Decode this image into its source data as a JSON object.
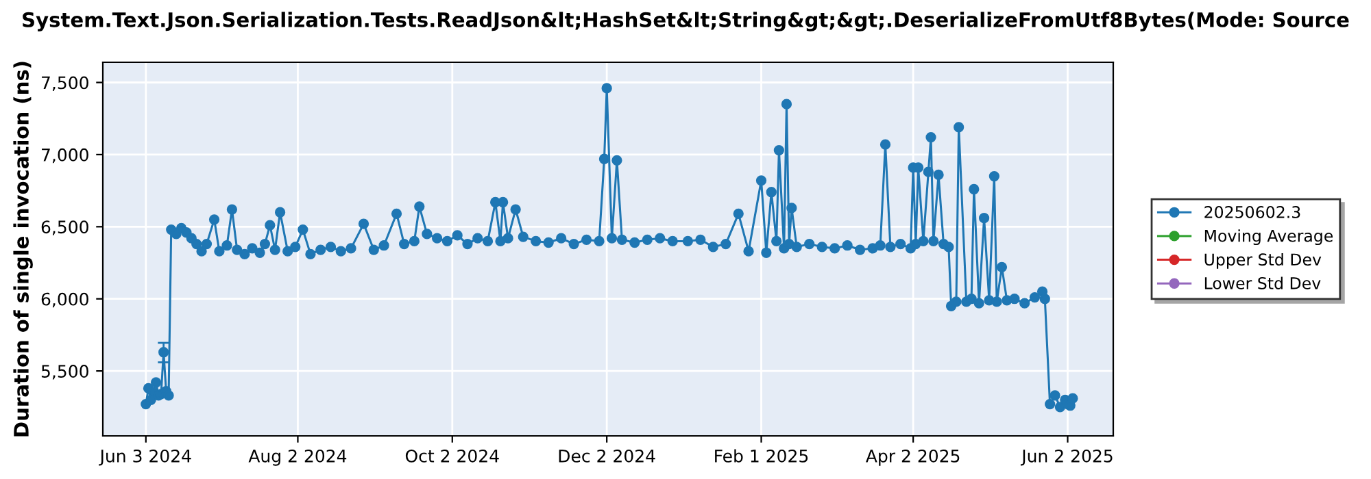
{
  "chart_data": {
    "type": "line",
    "title": "System.Text.Json.Serialization.Tests.ReadJson&lt;HashSet&lt;String&gt;&gt;.DeserializeFromUtf8Bytes(Mode: Source",
    "ylabel": "Duration of single invocation (ns)",
    "xlim": [
      "2024-05-17",
      "2025-06-20"
    ],
    "xticks": [
      {
        "value": "2024-06-03",
        "label": "Jun 3 2024"
      },
      {
        "value": "2024-08-02",
        "label": "Aug 2 2024"
      },
      {
        "value": "2024-10-02",
        "label": "Oct 2 2024"
      },
      {
        "value": "2024-12-02",
        "label": "Dec 2 2024"
      },
      {
        "value": "2025-02-01",
        "label": "Feb 1 2025"
      },
      {
        "value": "2025-04-02",
        "label": "Apr 2 2025"
      },
      {
        "value": "2025-06-02",
        "label": "Jun 2 2025"
      }
    ],
    "ylim": [
      5050,
      7640
    ],
    "yticks": [
      {
        "value": 5500,
        "label": "5,500"
      },
      {
        "value": 6000,
        "label": "6,000"
      },
      {
        "value": 6500,
        "label": "6,500"
      },
      {
        "value": 7000,
        "label": "7,000"
      },
      {
        "value": 7500,
        "label": "7,500"
      }
    ],
    "grid": true,
    "legend": "right",
    "marker": "circle",
    "line_style": "solid",
    "series": [
      {
        "name": "20250602.3",
        "color": "#1f77b4",
        "x": [
          "2024-06-03",
          "2024-06-04",
          "2024-06-05",
          "2024-06-06",
          "2024-06-07",
          "2024-06-08",
          "2024-06-09",
          "2024-06-10",
          "2024-06-11",
          "2024-06-12",
          "2024-06-13",
          "2024-06-15",
          "2024-06-17",
          "2024-06-19",
          "2024-06-21",
          "2024-06-23",
          "2024-06-25",
          "2024-06-27",
          "2024-06-30",
          "2024-07-02",
          "2024-07-05",
          "2024-07-07",
          "2024-07-09",
          "2024-07-12",
          "2024-07-15",
          "2024-07-18",
          "2024-07-20",
          "2024-07-22",
          "2024-07-24",
          "2024-07-26",
          "2024-07-29",
          "2024-08-01",
          "2024-08-04",
          "2024-08-07",
          "2024-08-11",
          "2024-08-15",
          "2024-08-19",
          "2024-08-23",
          "2024-08-28",
          "2024-09-01",
          "2024-09-05",
          "2024-09-10",
          "2024-09-13",
          "2024-09-17",
          "2024-09-19",
          "2024-09-22",
          "2024-09-26",
          "2024-09-30",
          "2024-10-04",
          "2024-10-08",
          "2024-10-12",
          "2024-10-16",
          "2024-10-19",
          "2024-10-21",
          "2024-10-22",
          "2024-10-24",
          "2024-10-27",
          "2024-10-30",
          "2024-11-04",
          "2024-11-09",
          "2024-11-14",
          "2024-11-19",
          "2024-11-24",
          "2024-11-29",
          "2024-12-01",
          "2024-12-02",
          "2024-12-04",
          "2024-12-06",
          "2024-12-08",
          "2024-12-13",
          "2024-12-18",
          "2024-12-23",
          "2024-12-28",
          "2025-01-03",
          "2025-01-08",
          "2025-01-13",
          "2025-01-18",
          "2025-01-23",
          "2025-01-27",
          "2025-02-01",
          "2025-02-03",
          "2025-02-05",
          "2025-02-07",
          "2025-02-08",
          "2025-02-10",
          "2025-02-11",
          "2025-02-12",
          "2025-02-13",
          "2025-02-15",
          "2025-02-20",
          "2025-02-25",
          "2025-03-02",
          "2025-03-07",
          "2025-03-12",
          "2025-03-17",
          "2025-03-20",
          "2025-03-22",
          "2025-03-24",
          "2025-03-28",
          "2025-04-01",
          "2025-04-02",
          "2025-04-03",
          "2025-04-04",
          "2025-04-06",
          "2025-04-08",
          "2025-04-09",
          "2025-04-10",
          "2025-04-12",
          "2025-04-14",
          "2025-04-16",
          "2025-04-17",
          "2025-04-19",
          "2025-04-20",
          "2025-04-23",
          "2025-04-25",
          "2025-04-26",
          "2025-04-28",
          "2025-04-30",
          "2025-05-02",
          "2025-05-04",
          "2025-05-05",
          "2025-05-07",
          "2025-05-09",
          "2025-05-12",
          "2025-05-16",
          "2025-05-20",
          "2025-05-23",
          "2025-05-24",
          "2025-05-26",
          "2025-05-28",
          "2025-05-30",
          "2025-06-01",
          "2025-06-02",
          "2025-06-03",
          "2025-06-04"
        ],
        "values": [
          5270,
          5380,
          5300,
          5350,
          5420,
          5330,
          5340,
          5630,
          5360,
          5330,
          6480,
          6450,
          6490,
          6460,
          6420,
          6380,
          6330,
          6380,
          6550,
          6330,
          6370,
          6620,
          6340,
          6310,
          6350,
          6320,
          6380,
          6510,
          6340,
          6600,
          6330,
          6360,
          6480,
          6310,
          6340,
          6360,
          6330,
          6350,
          6520,
          6340,
          6370,
          6590,
          6380,
          6400,
          6640,
          6450,
          6420,
          6400,
          6440,
          6380,
          6420,
          6400,
          6670,
          6400,
          6670,
          6420,
          6620,
          6430,
          6400,
          6390,
          6420,
          6380,
          6410,
          6400,
          6970,
          7460,
          6420,
          6960,
          6410,
          6390,
          6410,
          6420,
          6400,
          6400,
          6410,
          6360,
          6380,
          6590,
          6330,
          6820,
          6320,
          6740,
          6400,
          7030,
          6350,
          7350,
          6380,
          6630,
          6360,
          6380,
          6360,
          6350,
          6370,
          6340,
          6350,
          6370,
          7070,
          6360,
          6380,
          6350,
          6910,
          6380,
          6910,
          6400,
          6880,
          7120,
          6400,
          6860,
          6380,
          6360,
          5950,
          5980,
          7190,
          5980,
          6000,
          6760,
          5970,
          6560,
          5990,
          6850,
          5980,
          6220,
          5990,
          6000,
          5970,
          6010,
          6050,
          6000,
          5270,
          5330,
          5250,
          5300,
          5270,
          5260,
          5310
        ],
        "errors": [
          null,
          null,
          null,
          null,
          null,
          null,
          null,
          [
            5560,
            5695
          ],
          null,
          null,
          null,
          null,
          null,
          null,
          null,
          null,
          null,
          null,
          null,
          null,
          null,
          null,
          null,
          null,
          null,
          null,
          null,
          null,
          null,
          null,
          null,
          null,
          null,
          null,
          null,
          null,
          null,
          null,
          null,
          null,
          null,
          null,
          null,
          null,
          null,
          null,
          null,
          null,
          null,
          null,
          null,
          null,
          null,
          null,
          null,
          null,
          null,
          null,
          null,
          null,
          null,
          null,
          null,
          null,
          null,
          null,
          null,
          null,
          null,
          null,
          null,
          null,
          null,
          null,
          null,
          null,
          null,
          null,
          null,
          null,
          null,
          null,
          null,
          null,
          null,
          null,
          null,
          null,
          null,
          null,
          null,
          null,
          null,
          null,
          null,
          null,
          null,
          null,
          null,
          null,
          null,
          null,
          null,
          null,
          null,
          null,
          null,
          null,
          null,
          null,
          null,
          null,
          null,
          null,
          null,
          null,
          null,
          null,
          null,
          null,
          null,
          null,
          null,
          null,
          null,
          null,
          null,
          null,
          null,
          null,
          null,
          null,
          null,
          null,
          null
        ]
      },
      {
        "name": "Moving Average",
        "color": "#2ca02c"
      },
      {
        "name": "Upper Std Dev",
        "color": "#d62728"
      },
      {
        "name": "Lower Std Dev",
        "color": "#9467bd"
      }
    ]
  }
}
